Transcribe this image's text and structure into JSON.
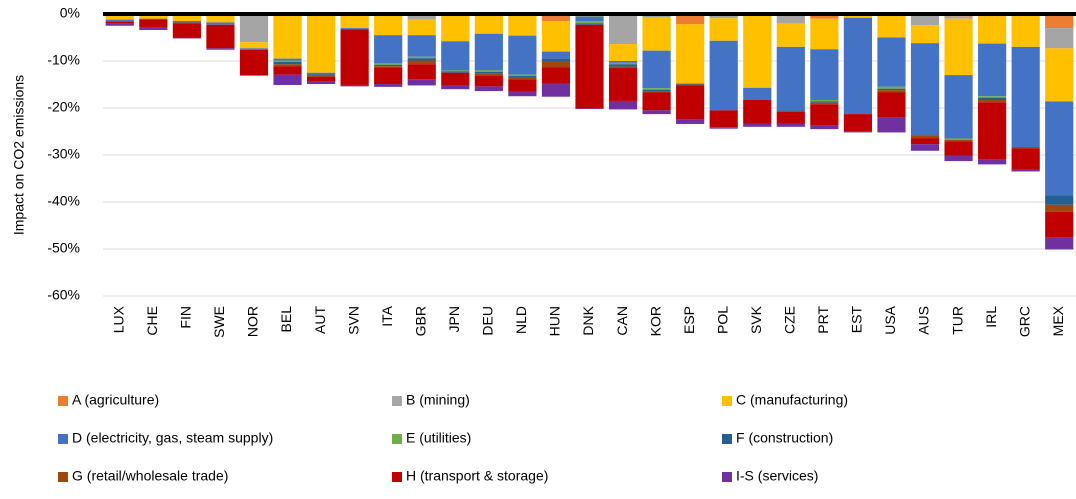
{
  "chart_data": {
    "type": "stacked_bar",
    "y_label": "Impact on CO2 emissions",
    "categories": [
      "LUX",
      "CHE",
      "FIN",
      "SWE",
      "NOR",
      "BEL",
      "AUT",
      "SVN",
      "ITA",
      "GBR",
      "JPN",
      "DEU",
      "NLD",
      "HUN",
      "DNK",
      "CAN",
      "KOR",
      "ESP",
      "POL",
      "SVK",
      "CZE",
      "PRT",
      "EST",
      "USA",
      "AUS",
      "TUR",
      "IRL",
      "GRC",
      "MEX"
    ],
    "series": [
      {
        "name": "A (agriculture)",
        "color": "#ed7d31",
        "values": [
          0,
          0,
          0,
          0,
          0,
          0,
          0,
          0,
          0,
          0,
          0,
          0,
          0,
          -1.5,
          0,
          0,
          0,
          -2.2,
          -0.4,
          0,
          0,
          -1,
          0,
          0,
          0,
          -0.5,
          -0.5,
          0,
          -3
        ]
      },
      {
        "name": "B (mining)",
        "color": "#a5a5a5",
        "values": [
          -0.2,
          -0.3,
          -0.3,
          -0.3,
          -6,
          0,
          0,
          0,
          0,
          -1.2,
          0,
          0,
          0,
          0,
          0,
          -6.4,
          -0.8,
          0,
          -0.5,
          0,
          -2,
          0,
          0,
          0,
          -2.4,
          -0.5,
          0,
          0,
          -4.3
        ]
      },
      {
        "name": "C (manufacturing)",
        "color": "#ffc000",
        "values": [
          -1,
          -0.7,
          -1.2,
          -1.5,
          -1.3,
          -9.5,
          -12.5,
          -3,
          -4.5,
          -3.3,
          -5.8,
          -4.2,
          -4.6,
          -6.5,
          -0.5,
          -3.6,
          -7,
          -12.6,
          -4.8,
          -15.7,
          -5,
          -6.5,
          -0.8,
          -5,
          -3.8,
          -12,
          -5.8,
          -7,
          -11.3
        ]
      },
      {
        "name": "D (electricity, gas, steam supply)",
        "color": "#4472c4",
        "values": [
          -0.3,
          0,
          -0.3,
          -0.5,
          -0.3,
          -0.4,
          -0.3,
          -0.3,
          -6,
          -4.6,
          -6.2,
          -7.8,
          -8.3,
          -1.5,
          -1,
          -0.4,
          -8,
          -0.2,
          -14.8,
          -2.6,
          -13.5,
          -10.8,
          -20.5,
          -10.5,
          -19.4,
          -13.5,
          -11.2,
          -21.3,
          -20
        ]
      },
      {
        "name": "E (utilities)",
        "color": "#70ad47",
        "values": [
          0,
          0,
          0,
          0,
          0,
          -0.3,
          0,
          0,
          -0.3,
          -0.3,
          -0.2,
          -0.3,
          -0.3,
          0,
          -0.5,
          -0.3,
          -0.3,
          0,
          0,
          0,
          0,
          -0.3,
          0,
          -0.4,
          0,
          -0.3,
          -0.3,
          0,
          0
        ]
      },
      {
        "name": "F (construction)",
        "color": "#255e91",
        "values": [
          0,
          0,
          0,
          0,
          0,
          -0.5,
          -0.3,
          0,
          -0.3,
          -0.5,
          -0.3,
          -0.4,
          -0.4,
          -0.5,
          -0.3,
          -0.5,
          -0.3,
          0,
          0,
          0,
          -0.3,
          -0.3,
          0,
          -0.3,
          -0.3,
          0,
          -0.5,
          0,
          -2
        ]
      },
      {
        "name": "G (retail/wholesale trade)",
        "color": "#9e480e",
        "values": [
          -0.2,
          -0.2,
          -0.2,
          0,
          0,
          -0.4,
          -0.3,
          0,
          -0.3,
          -0.8,
          0,
          -0.5,
          -0.3,
          -1.3,
          0,
          -0.3,
          -0.3,
          -0.2,
          0,
          0,
          0,
          -0.3,
          0,
          -0.5,
          -0.5,
          -0.3,
          -0.5,
          -0.3,
          -1.5
        ]
      },
      {
        "name": "H (transport & storage)",
        "color": "#c00000",
        "values": [
          -0.3,
          -1.7,
          -3.1,
          -5,
          -5.5,
          -1.8,
          -1,
          -11.8,
          -3.5,
          -3.2,
          -2.7,
          -2.2,
          -2.6,
          -3.5,
          -17.8,
          -7,
          -3.8,
          -7.3,
          -3.6,
          -5,
          -2.5,
          -4.5,
          -3.6,
          -5.3,
          -1.3,
          -3,
          -12.2,
          -4.5,
          -5.5
        ]
      },
      {
        "name": "I-S (services)",
        "color": "#7030a0",
        "values": [
          -0.5,
          -0.5,
          -0.1,
          -0.3,
          0,
          -2.2,
          -0.5,
          -0.3,
          -0.6,
          -1.3,
          -0.8,
          -1,
          -1,
          -2.8,
          -0.1,
          -1.8,
          -0.8,
          -0.9,
          -0.3,
          -0.7,
          -0.7,
          -0.8,
          -0.3,
          -3.2,
          -1.4,
          -1.2,
          -1,
          -0.4,
          -2.5
        ]
      }
    ],
    "ylim": [
      -60,
      0
    ],
    "yticks": [
      {
        "value": -60,
        "label": "-60%"
      },
      {
        "value": -50,
        "label": "-50%"
      },
      {
        "value": -40,
        "label": "-40%"
      },
      {
        "value": -30,
        "label": "-30%"
      },
      {
        "value": -20,
        "label": "-20%"
      },
      {
        "value": -10,
        "label": "-10%"
      },
      {
        "value": 0,
        "label": "0%"
      }
    ],
    "grid": true
  }
}
